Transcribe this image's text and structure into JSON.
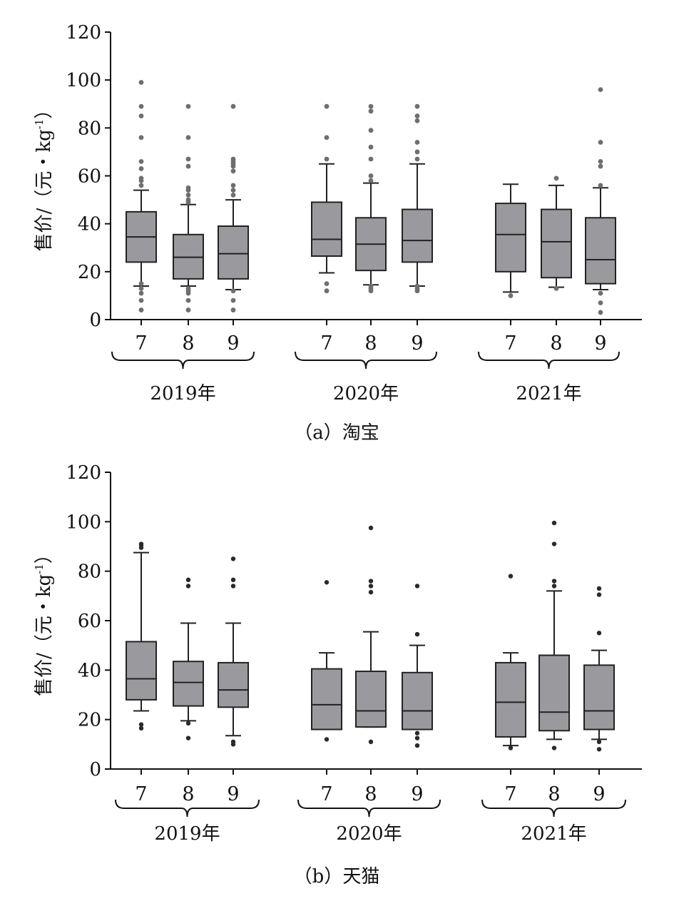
{
  "chart_data": [
    {
      "type": "box",
      "caption": "（a）淘宝",
      "ylabel": "售价/（元・kg-1）",
      "ylabel_main": "售价/（元・kg",
      "ylabel_sup": "-1",
      "ylabel_close": "）",
      "ylim": [
        0,
        120
      ],
      "yticks": [
        "0",
        "20",
        "40",
        "60",
        "80",
        "100",
        "120"
      ],
      "year_labels": [
        "2019年",
        "2020年",
        "2021年"
      ],
      "month_labels": [
        "7",
        "8",
        "9",
        "7",
        "8",
        "9",
        "7",
        "8",
        "9"
      ],
      "boxes": [
        {
          "year": "2019年",
          "month": "7",
          "whisker_low": 14,
          "q1": 24,
          "median": 34.5,
          "q3": 45,
          "whisker_high": 54,
          "outliers": [
            4,
            8,
            11,
            13,
            15,
            56,
            58,
            59,
            63,
            66,
            76,
            85,
            89,
            99
          ]
        },
        {
          "year": "2019年",
          "month": "8",
          "whisker_low": 14,
          "q1": 17,
          "median": 26,
          "q3": 35.5,
          "whisker_high": 48,
          "outliers": [
            4,
            8,
            11,
            12,
            13,
            49,
            50,
            52,
            54,
            55,
            64,
            67,
            76,
            89
          ]
        },
        {
          "year": "2019年",
          "month": "9",
          "whisker_low": 12.5,
          "q1": 17,
          "median": 27.5,
          "q3": 39,
          "whisker_high": 50,
          "outliers": [
            4,
            8,
            12,
            52,
            54,
            56,
            62,
            64,
            65,
            66,
            67,
            89
          ]
        },
        {
          "year": "2020年",
          "month": "7",
          "whisker_low": 19.5,
          "q1": 26.5,
          "median": 33.5,
          "q3": 49,
          "whisker_high": 65,
          "outliers": [
            12,
            15,
            67,
            76,
            89
          ]
        },
        {
          "year": "2020年",
          "month": "8",
          "whisker_low": 14.5,
          "q1": 20.5,
          "median": 31.5,
          "q3": 42.5,
          "whisker_high": 57,
          "outliers": [
            12,
            13,
            14,
            58,
            60,
            67,
            72,
            79,
            87,
            89
          ]
        },
        {
          "year": "2020年",
          "month": "9",
          "whisker_low": 14,
          "q1": 24,
          "median": 33,
          "q3": 46,
          "whisker_high": 65,
          "outliers": [
            12,
            13,
            14,
            67,
            70,
            74,
            83,
            85,
            89
          ]
        },
        {
          "year": "2021年",
          "month": "7",
          "whisker_low": 11.5,
          "q1": 20,
          "median": 35.5,
          "q3": 48.5,
          "whisker_high": 56.5,
          "outliers": [
            10
          ]
        },
        {
          "year": "2021年",
          "month": "8",
          "whisker_low": 13.5,
          "q1": 17.5,
          "median": 32.5,
          "q3": 46,
          "whisker_high": 56,
          "outliers": [
            13,
            59
          ]
        },
        {
          "year": "2021年",
          "month": "9",
          "whisker_low": 12.5,
          "q1": 15,
          "median": 25,
          "q3": 42.5,
          "whisker_high": 55,
          "outliers": [
            3,
            7,
            11,
            56,
            64,
            66,
            74,
            96
          ]
        }
      ]
    },
    {
      "type": "box",
      "caption": "（b）天猫",
      "ylabel": "售价/（元・kg-1）",
      "ylabel_main": "售价/（元・kg",
      "ylabel_sup": "-1",
      "ylabel_close": "）",
      "ylim": [
        0,
        120
      ],
      "yticks": [
        "0",
        "20",
        "40",
        "60",
        "80",
        "100",
        "120"
      ],
      "year_labels": [
        "2019年",
        "2020年",
        "2021年"
      ],
      "month_labels": [
        "7",
        "8",
        "9",
        "7",
        "8",
        "9",
        "7",
        "8",
        "9"
      ],
      "boxes": [
        {
          "year": "2019年",
          "month": "7",
          "whisker_low": 23.5,
          "q1": 28,
          "median": 36.5,
          "q3": 51.5,
          "whisker_high": 87.5,
          "outliers": [
            16.5,
            18,
            89.5,
            90.5,
            91
          ]
        },
        {
          "year": "2019年",
          "month": "8",
          "whisker_low": 19.5,
          "q1": 25.5,
          "median": 35,
          "q3": 43.5,
          "whisker_high": 59,
          "outliers": [
            12.5,
            18.5,
            74,
            76.5
          ]
        },
        {
          "year": "2019年",
          "month": "9",
          "whisker_low": 13.5,
          "q1": 25,
          "median": 32,
          "q3": 43,
          "whisker_high": 59,
          "outliers": [
            10,
            11,
            74,
            76.5,
            85
          ]
        },
        {
          "year": "2020年",
          "month": "7",
          "whisker_low": 16,
          "q1": 16,
          "median": 26,
          "q3": 40.5,
          "whisker_high": 47,
          "outliers": [
            12,
            75.5
          ]
        },
        {
          "year": "2020年",
          "month": "8",
          "whisker_low": 17,
          "q1": 17,
          "median": 23.5,
          "q3": 39.5,
          "whisker_high": 55.5,
          "outliers": [
            11,
            71.5,
            74,
            76,
            97.5
          ]
        },
        {
          "year": "2020年",
          "month": "9",
          "whisker_low": 16,
          "q1": 16,
          "median": 23.5,
          "q3": 39,
          "whisker_high": 50,
          "outliers": [
            9.5,
            12.5,
            14.5,
            54.5,
            74
          ]
        },
        {
          "year": "2021年",
          "month": "7",
          "whisker_low": 9.5,
          "q1": 13,
          "median": 27,
          "q3": 43,
          "whisker_high": 47,
          "outliers": [
            8.5,
            78
          ]
        },
        {
          "year": "2021年",
          "month": "8",
          "whisker_low": 12,
          "q1": 15.5,
          "median": 23,
          "q3": 46,
          "whisker_high": 72,
          "outliers": [
            8.5,
            74,
            76,
            91,
            99.5
          ]
        },
        {
          "year": "2021年",
          "month": "9",
          "whisker_low": 12,
          "q1": 16,
          "median": 23.5,
          "q3": 42,
          "whisker_high": 48,
          "outliers": [
            8,
            11,
            55,
            70.5,
            73
          ]
        }
      ]
    }
  ]
}
